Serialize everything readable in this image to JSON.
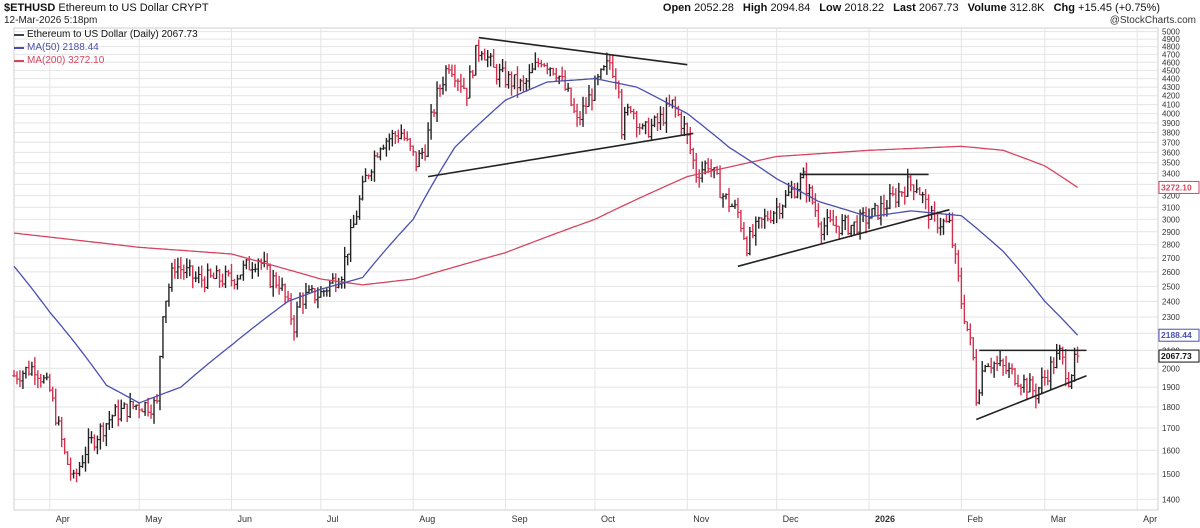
{
  "header": {
    "symbol": "$ETHUSD",
    "name": "Ethereum to US Dollar",
    "exchange": "CRYPT",
    "datetime": "12-Mar-2026 5:18pm",
    "open_label": "Open",
    "open": "2052.28",
    "high_label": "High",
    "high": "2094.84",
    "low_label": "Low",
    "low": "2018.22",
    "last_label": "Last",
    "last": "2067.73",
    "volume_label": "Volume",
    "volume": "312.8K",
    "chg_label": "Chg",
    "chg": "+15.45 (+0.75%)",
    "brand": "@StockCharts.com"
  },
  "legend": {
    "price": "Ethereum to US Dollar (Daily) 2067.73",
    "ma50": "MA(50) 2188.44",
    "ma200": "MA(200) 3272.10"
  },
  "colors": {
    "ma50": "#4a4fb0",
    "ma200": "#d64560",
    "up": "#222222",
    "down": "#d2304f",
    "grid": "#e4e4e4",
    "trendline": "#222222"
  },
  "chart_data": {
    "type": "line",
    "subtype": "ohlc",
    "scale": "log",
    "x_ticks": [
      "Apr",
      "May",
      "Jun",
      "Jul",
      "Aug",
      "Sep",
      "Oct",
      "Nov",
      "Dec",
      "2026",
      "Feb",
      "Mar",
      "Apr"
    ],
    "x_range": [
      "2025-03-20",
      "2026-04-08"
    ],
    "y_ticks": [
      1400,
      1500,
      1600,
      1700,
      1800,
      1900,
      2000,
      2100,
      2200,
      2300,
      2400,
      2500,
      2600,
      2700,
      2800,
      2900,
      3000,
      3100,
      3200,
      3300,
      3400,
      3500,
      3600,
      3700,
      3800,
      3900,
      4000,
      4100,
      4200,
      4300,
      4400,
      4500,
      4600,
      4700,
      4800,
      4900,
      5000
    ],
    "ylim": [
      1360,
      5050
    ],
    "grid": true,
    "price_close_anchors": [
      [
        "2025-03-20",
        1960
      ],
      [
        "2025-03-27",
        2010
      ],
      [
        "2025-04-01",
        1880
      ],
      [
        "2025-04-06",
        1580
      ],
      [
        "2025-04-09",
        1470
      ],
      [
        "2025-04-13",
        1600
      ],
      [
        "2025-04-22",
        1760
      ],
      [
        "2025-04-30",
        1810
      ],
      [
        "2025-05-07",
        1810
      ],
      [
        "2025-05-09",
        2350
      ],
      [
        "2025-05-13",
        2650
      ],
      [
        "2025-05-20",
        2550
      ],
      [
        "2025-06-01",
        2550
      ],
      [
        "2025-06-10",
        2700
      ],
      [
        "2025-06-14",
        2550
      ],
      [
        "2025-06-17",
        2530
      ],
      [
        "2025-06-22",
        2250
      ],
      [
        "2025-06-24",
        2420
      ],
      [
        "2025-07-01",
        2450
      ],
      [
        "2025-07-08",
        2600
      ],
      [
        "2025-07-12",
        2950
      ],
      [
        "2025-07-16",
        3350
      ],
      [
        "2025-07-21",
        3700
      ],
      [
        "2025-07-28",
        3800
      ],
      [
        "2025-08-02",
        3500
      ],
      [
        "2025-08-05",
        3650
      ],
      [
        "2025-08-09",
        4200
      ],
      [
        "2025-08-13",
        4600
      ],
      [
        "2025-08-19",
        4250
      ],
      [
        "2025-08-22",
        4700
      ],
      [
        "2025-08-24",
        4800
      ],
      [
        "2025-08-28",
        4500
      ],
      [
        "2025-09-01",
        4400
      ],
      [
        "2025-09-07",
        4300
      ],
      [
        "2025-09-13",
        4650
      ],
      [
        "2025-09-18",
        4500
      ],
      [
        "2025-09-22",
        4200
      ],
      [
        "2025-09-25",
        3900
      ],
      [
        "2025-10-01",
        4300
      ],
      [
        "2025-10-06",
        4600
      ],
      [
        "2025-10-09",
        4350
      ],
      [
        "2025-10-10",
        3850
      ],
      [
        "2025-10-13",
        4100
      ],
      [
        "2025-10-17",
        3800
      ],
      [
        "2025-10-22",
        3900
      ],
      [
        "2025-10-27",
        4100
      ],
      [
        "2025-10-31",
        3850
      ],
      [
        "2025-11-04",
        3400
      ],
      [
        "2025-11-08",
        3500
      ],
      [
        "2025-11-13",
        3200
      ],
      [
        "2025-11-18",
        3050
      ],
      [
        "2025-11-21",
        2800
      ],
      [
        "2025-11-25",
        2950
      ],
      [
        "2025-12-03",
        3150
      ],
      [
        "2025-12-10",
        3350
      ],
      [
        "2025-12-16",
        2950
      ],
      [
        "2025-12-20",
        2950
      ],
      [
        "2025-12-27",
        2950
      ],
      [
        "2026-01-03",
        3050
      ],
      [
        "2026-01-08",
        3150
      ],
      [
        "2026-01-14",
        3300
      ],
      [
        "2026-01-17",
        3300
      ],
      [
        "2026-01-22",
        3000
      ],
      [
        "2026-01-28",
        2950
      ],
      [
        "2026-02-01",
        2400
      ],
      [
        "2026-02-05",
        2050
      ],
      [
        "2026-02-06",
        1850
      ],
      [
        "2026-02-09",
        2050
      ],
      [
        "2026-02-15",
        2000
      ],
      [
        "2026-02-20",
        1950
      ],
      [
        "2026-02-26",
        1870
      ],
      [
        "2026-03-02",
        1980
      ],
      [
        "2026-03-06",
        2080
      ],
      [
        "2026-03-09",
        1950
      ],
      [
        "2026-03-12",
        2067.73
      ]
    ],
    "ma50_anchors": [
      [
        "2025-03-20",
        2640
      ],
      [
        "2025-04-01",
        2330
      ],
      [
        "2025-04-20",
        1910
      ],
      [
        "2025-05-01",
        1820
      ],
      [
        "2025-05-15",
        1900
      ],
      [
        "2025-06-01",
        2130
      ],
      [
        "2025-06-20",
        2400
      ],
      [
        "2025-07-01",
        2480
      ],
      [
        "2025-07-15",
        2560
      ],
      [
        "2025-08-01",
        3000
      ],
      [
        "2025-08-15",
        3650
      ],
      [
        "2025-09-01",
        4150
      ],
      [
        "2025-09-15",
        4360
      ],
      [
        "2025-10-01",
        4400
      ],
      [
        "2025-10-15",
        4300
      ],
      [
        "2025-11-01",
        4000
      ],
      [
        "2025-11-15",
        3650
      ],
      [
        "2025-12-01",
        3350
      ],
      [
        "2025-12-15",
        3150
      ],
      [
        "2026-01-01",
        3020
      ],
      [
        "2026-01-15",
        3070
      ],
      [
        "2026-02-01",
        3030
      ],
      [
        "2026-02-15",
        2750
      ],
      [
        "2026-03-01",
        2400
      ],
      [
        "2026-03-12",
        2188.44
      ]
    ],
    "ma200_anchors": [
      [
        "2025-03-20",
        2890
      ],
      [
        "2025-05-01",
        2780
      ],
      [
        "2025-06-01",
        2730
      ],
      [
        "2025-07-01",
        2550
      ],
      [
        "2025-07-15",
        2510
      ],
      [
        "2025-08-01",
        2550
      ],
      [
        "2025-09-01",
        2740
      ],
      [
        "2025-10-01",
        3000
      ],
      [
        "2025-11-01",
        3370
      ],
      [
        "2025-12-01",
        3560
      ],
      [
        "2026-01-01",
        3620
      ],
      [
        "2026-02-01",
        3660
      ],
      [
        "2026-02-15",
        3620
      ],
      [
        "2026-03-01",
        3470
      ],
      [
        "2026-03-12",
        3272.1
      ]
    ],
    "trendlines": [
      [
        [
          "2025-08-23",
          4920
        ],
        [
          "2025-11-01",
          4570
        ]
      ],
      [
        [
          "2025-08-06",
          3370
        ],
        [
          "2025-11-03",
          3790
        ]
      ],
      [
        [
          "2025-12-09",
          3390
        ],
        [
          "2026-01-21",
          3390
        ]
      ],
      [
        [
          "2025-11-18",
          2640
        ],
        [
          "2026-01-28",
          3080
        ]
      ],
      [
        [
          "2026-02-07",
          2100
        ],
        [
          "2026-03-15",
          2100
        ]
      ],
      [
        [
          "2026-02-06",
          1740
        ],
        [
          "2026-03-15",
          1960
        ]
      ]
    ],
    "axis_markers": [
      {
        "value": 3272.1,
        "label": "3272.10",
        "color": "#d64560"
      },
      {
        "value": 2188.44,
        "label": "2188.44",
        "color": "#4a4fb0"
      },
      {
        "value": 2067.73,
        "label": "2067.73",
        "color": "#111111"
      }
    ]
  }
}
